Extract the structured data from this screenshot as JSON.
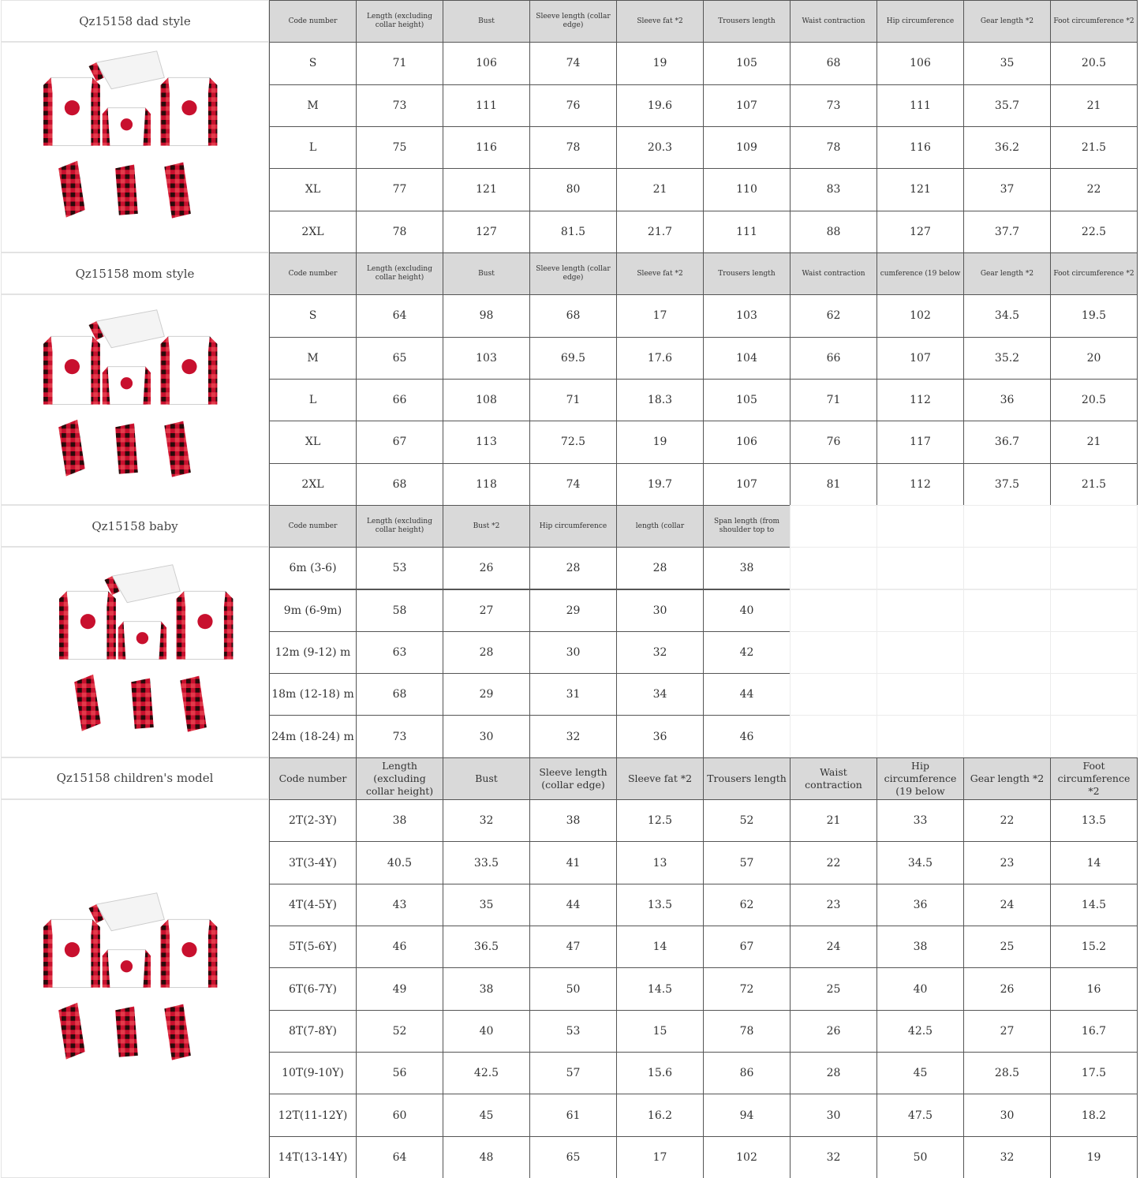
{
  "sections": [
    {
      "title": "Qz15158 dad style",
      "header": [
        "Code number",
        "Length (excluding collar height)",
        "Bust",
        "Sleeve length (collar edge)",
        "Sleeve fat *2",
        "Trousers length",
        "Waist contraction",
        "Hip circumference",
        "Gear length *2",
        "Foot circumference *2"
      ],
      "rows": [
        [
          "S",
          "71",
          "106",
          "74",
          "19",
          "105",
          "68",
          "106",
          "35",
          "20.5"
        ],
        [
          "M",
          "73",
          "111",
          "76",
          "19.6",
          "107",
          "73",
          "111",
          "35.7",
          "21"
        ],
        [
          "L",
          "75",
          "116",
          "78",
          "20.3",
          "109",
          "78",
          "116",
          "36.2",
          "21.5"
        ],
        [
          "XL",
          "77",
          "121",
          "80",
          "21",
          "110",
          "83",
          "121",
          "37",
          "22"
        ],
        [
          "2XL",
          "78",
          "127",
          "81.5",
          "21.7",
          "111",
          "88",
          "127",
          "37.7",
          "22.5"
        ]
      ]
    },
    {
      "title": "Qz15158 mom style",
      "header": [
        "Code number",
        "Length (excluding collar height)",
        "Bust",
        "Sleeve length (collar edge)",
        "Sleeve fat *2",
        "Trousers length",
        "Waist contraction",
        "cumference (19 below",
        "Gear length *2",
        "Foot circumference *2"
      ],
      "rows": [
        [
          "S",
          "64",
          "98",
          "68",
          "17",
          "103",
          "62",
          "102",
          "34.5",
          "19.5"
        ],
        [
          "M",
          "65",
          "103",
          "69.5",
          "17.6",
          "104",
          "66",
          "107",
          "35.2",
          "20"
        ],
        [
          "L",
          "66",
          "108",
          "71",
          "18.3",
          "105",
          "71",
          "112",
          "36",
          "20.5"
        ],
        [
          "XL",
          "67",
          "113",
          "72.5",
          "19",
          "106",
          "76",
          "117",
          "36.7",
          "21"
        ],
        [
          "2XL",
          "68",
          "118",
          "74",
          "19.7",
          "107",
          "81",
          "112",
          "37.5",
          "21.5"
        ]
      ]
    },
    {
      "title": "Qz15158 baby",
      "header": [
        "Code number",
        "Length (excluding collar height)",
        "Bust *2",
        "Hip circumference",
        "length (collar",
        "Span length (from shoulder top to"
      ],
      "rows": [
        [
          "6m (3-6)",
          "53",
          "26",
          "28",
          "28",
          "38"
        ],
        [
          "9m (6-9m)",
          "58",
          "27",
          "29",
          "30",
          "40"
        ],
        [
          "12m (9-12) m",
          "63",
          "28",
          "30",
          "32",
          "42"
        ],
        [
          "18m (12-18) m",
          "68",
          "29",
          "31",
          "34",
          "44"
        ],
        [
          "24m (18-24) m",
          "73",
          "30",
          "32",
          "36",
          "46"
        ]
      ]
    },
    {
      "title": "Qz15158 children's model",
      "header": [
        "Code number",
        "Length (excluding collar height)",
        "Bust",
        "Sleeve length (collar edge)",
        "Sleeve fat *2",
        "Trousers length",
        "Waist contraction",
        "Hip circumference (19 below",
        "Gear length *2",
        "Foot circumference *2"
      ],
      "rows": [
        [
          "2T(2-3Y)",
          "38",
          "32",
          "38",
          "12.5",
          "52",
          "21",
          "33",
          "22",
          "13.5"
        ],
        [
          "3T(3-4Y)",
          "40.5",
          "33.5",
          "41",
          "13",
          "57",
          "22",
          "34.5",
          "23",
          "14"
        ],
        [
          "4T(4-5Y)",
          "43",
          "35",
          "44",
          "13.5",
          "62",
          "23",
          "36",
          "24",
          "14.5"
        ],
        [
          "5T(5-6Y)",
          "46",
          "36.5",
          "47",
          "14",
          "67",
          "24",
          "38",
          "25",
          "15.2"
        ],
        [
          "6T(6-7Y)",
          "49",
          "38",
          "50",
          "14.5",
          "72",
          "25",
          "40",
          "26",
          "16"
        ],
        [
          "8T(7-8Y)",
          "52",
          "40",
          "53",
          "15",
          "78",
          "26",
          "42.5",
          "27",
          "16.7"
        ],
        [
          "10T(9-10Y)",
          "56",
          "42.5",
          "57",
          "15.6",
          "86",
          "28",
          "45",
          "28.5",
          "17.5"
        ],
        [
          "12T(11-12Y)",
          "60",
          "45",
          "61",
          "16.2",
          "94",
          "30",
          "47.5",
          "30",
          "18.2"
        ],
        [
          "14T(13-14Y)",
          "64",
          "48",
          "65",
          "17",
          "102",
          "32",
          "50",
          "32",
          "19"
        ]
      ]
    }
  ]
}
